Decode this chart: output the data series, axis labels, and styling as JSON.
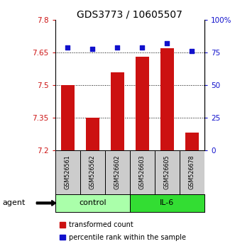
{
  "title": "GDS3773 / 10605507",
  "samples": [
    "GSM526561",
    "GSM526562",
    "GSM526602",
    "GSM526603",
    "GSM526605",
    "GSM526678"
  ],
  "bar_values": [
    7.5,
    7.35,
    7.56,
    7.63,
    7.67,
    7.28
  ],
  "percentile_values": [
    79,
    78,
    79,
    79,
    82,
    76
  ],
  "ylim_left": [
    7.2,
    7.8
  ],
  "ylim_right": [
    0,
    100
  ],
  "yticks_left": [
    7.2,
    7.35,
    7.5,
    7.65,
    7.8
  ],
  "ytick_labels_left": [
    "7.2",
    "7.35",
    "7.5",
    "7.65",
    "7.8"
  ],
  "yticks_right": [
    0,
    25,
    50,
    75,
    100
  ],
  "ytick_labels_right": [
    "0",
    "25",
    "50",
    "75",
    "100%"
  ],
  "hlines": [
    7.35,
    7.5,
    7.65
  ],
  "bar_color": "#cc1111",
  "percentile_color": "#1111cc",
  "bar_width": 0.55,
  "groups": [
    {
      "label": "control",
      "indices": [
        0,
        1,
        2
      ],
      "color": "#aaffaa"
    },
    {
      "label": "IL-6",
      "indices": [
        3,
        4,
        5
      ],
      "color": "#33dd33"
    }
  ],
  "agent_label": "agent",
  "legend_bar_label": "transformed count",
  "legend_pct_label": "percentile rank within the sample",
  "title_fontsize": 10,
  "tick_fontsize": 7.5,
  "sample_fontsize": 5.8,
  "group_fontsize": 8,
  "legend_fontsize": 7,
  "label_box_color": "#cccccc",
  "background_color": "#ffffff"
}
